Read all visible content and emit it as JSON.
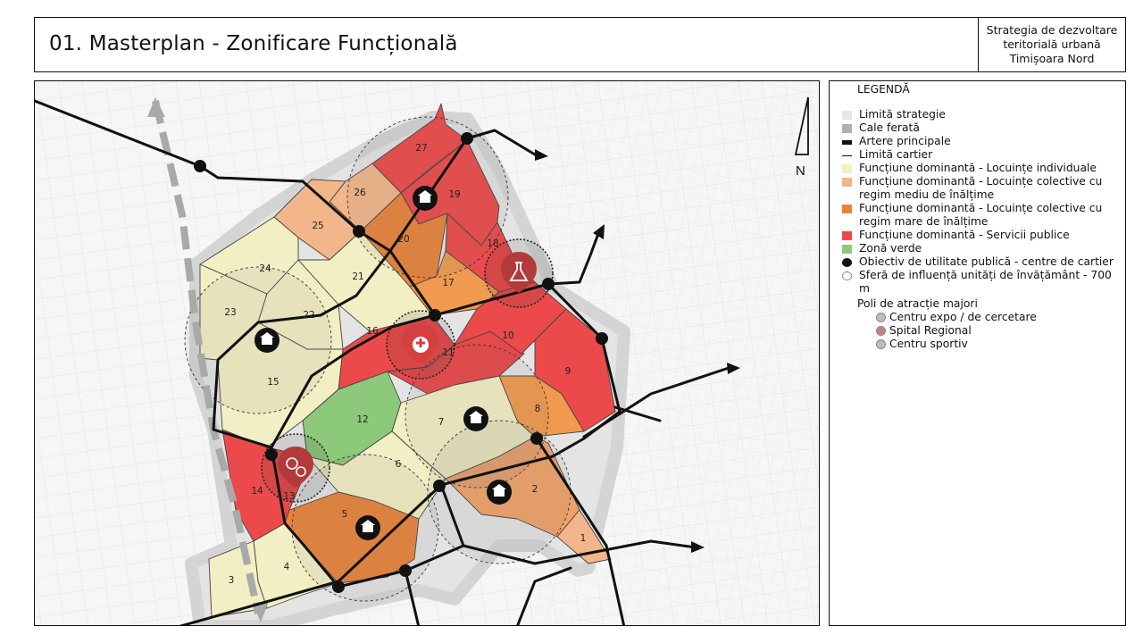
{
  "header": {
    "title": "01. Masterplan - Zonificare Funcțională",
    "subtitle_lines": [
      "Strategia de dezvoltare",
      "teritorială urbană",
      "Timișoara Nord"
    ]
  },
  "map": {
    "north_label": "N",
    "zones": [
      {
        "label": "1",
        "color": "#f2b68a"
      },
      {
        "label": "2",
        "color": "#f0a26a"
      },
      {
        "label": "3",
        "color": "#f2efc4"
      },
      {
        "label": "4",
        "color": "#f2efc4"
      },
      {
        "label": "5",
        "color": "#e8843a"
      },
      {
        "label": "6",
        "color": "#f2efc4"
      },
      {
        "label": "7",
        "color": "#f2efc4"
      },
      {
        "label": "8",
        "color": "#ef9a4e"
      },
      {
        "label": "9",
        "color": "#ec4a4a"
      },
      {
        "label": "10",
        "color": "#ec4a4a"
      },
      {
        "label": "11",
        "color": "#e84848"
      },
      {
        "label": "12",
        "color": "#8cc97a"
      },
      {
        "label": "13",
        "color": "#e84848"
      },
      {
        "label": "14",
        "color": "#ec4a4a"
      },
      {
        "label": "15",
        "color": "#f2efc4"
      },
      {
        "label": "16",
        "color": "#ec4a4a"
      },
      {
        "label": "17",
        "color": "#ef9a4e"
      },
      {
        "label": "18",
        "color": "#ec4a4a"
      },
      {
        "label": "19",
        "color": "#ec4a4a"
      },
      {
        "label": "20",
        "color": "#e8843a"
      },
      {
        "label": "21",
        "color": "#f2efc4"
      },
      {
        "label": "22",
        "color": "#f2efc4"
      },
      {
        "label": "23",
        "color": "#f2efc4"
      },
      {
        "label": "24",
        "color": "#f2efc4"
      },
      {
        "label": "25",
        "color": "#f2b68a"
      },
      {
        "label": "26",
        "color": "#f2b68a"
      },
      {
        "label": "27",
        "color": "#ec4a4a"
      }
    ]
  },
  "legend": {
    "title": "LEGENDĂ",
    "items": [
      {
        "label": "Limită strategie",
        "color": "#e6e6e6",
        "type": "fill"
      },
      {
        "label": "Cale ferată",
        "color": "#b0b0b0",
        "type": "fill"
      },
      {
        "label": "Artere principale",
        "color": "#111111",
        "type": "thick-line"
      },
      {
        "label": "Limită cartier",
        "color": "#111111",
        "type": "thin-line"
      },
      {
        "label": "Funcțiune dominantă - Locuințe individuale",
        "color": "#f2efc4",
        "type": "fill"
      },
      {
        "label": "Funcțiune dominantă - Locuințe colective cu regim mediu de înălțime",
        "color": "#f2b68a",
        "type": "fill"
      },
      {
        "label": "Funcțiune dominantă - Locuințe colective cu regim mare de înălțime",
        "color": "#e8843a",
        "type": "fill"
      },
      {
        "label": "Funcțiune dominantă - Servicii publice",
        "color": "#ec4a4a",
        "type": "fill"
      },
      {
        "label": "Zonă verde",
        "color": "#8cc97a",
        "type": "fill"
      },
      {
        "label": "Obiectiv de utilitate publică - centre de cartier",
        "color": "#111111",
        "type": "dot"
      },
      {
        "label": "Sferă de influență unități de învățământ - 700 m",
        "color": "#111111",
        "type": "dashed-circle"
      }
    ],
    "poles_title": "Poli de atracție majori",
    "poles": [
      {
        "label": "Centru expo / de cercetare",
        "color": "#bdbdbd"
      },
      {
        "label": "Spital Regional",
        "color": "#c98080"
      },
      {
        "label": "Centru sportiv",
        "color": "#bdbdbd"
      }
    ]
  }
}
